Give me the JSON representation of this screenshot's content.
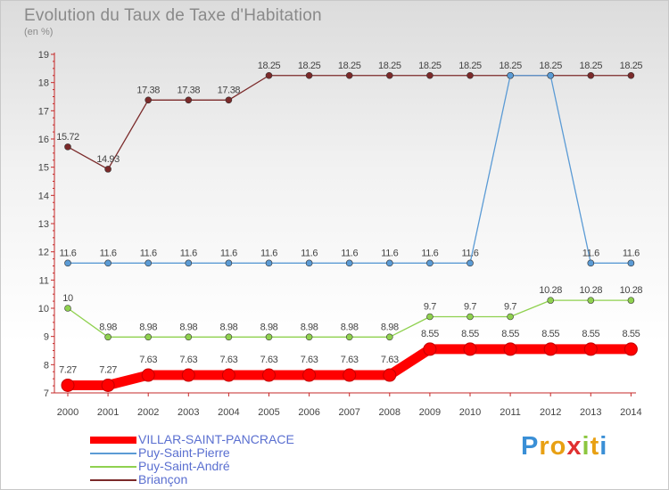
{
  "title": "Evolution du Taux de Taxe d'Habitation",
  "subtitle": "(en %)",
  "brand": {
    "letters": [
      "P",
      "r",
      "o",
      "x",
      "i",
      "t",
      "i"
    ],
    "colors": [
      "#3a8fd6",
      "#e8a013",
      "#e8a013",
      "#e03030",
      "#8cc63f",
      "#e8a013",
      "#3a8fd6"
    ]
  },
  "chart_data": {
    "type": "line",
    "title": "Evolution du Taux de Taxe d'Habitation",
    "ylabel": "(en %)",
    "xlabel": "",
    "ylim": [
      7,
      19
    ],
    "grid": false,
    "categories": [
      "2000",
      "2001",
      "2002",
      "2003",
      "2004",
      "2005",
      "2006",
      "2007",
      "2008",
      "2009",
      "2010",
      "2011",
      "2012",
      "2013",
      "2014"
    ],
    "yticks": [
      7,
      8,
      9,
      10,
      11,
      12,
      13,
      14,
      15,
      16,
      17,
      18,
      19
    ],
    "series": [
      {
        "name": "VILLAR-SAINT-PANCRACE",
        "color": "#ff0000",
        "values": [
          7.27,
          7.27,
          7.63,
          7.63,
          7.63,
          7.63,
          7.63,
          7.63,
          7.63,
          8.55,
          8.55,
          8.55,
          8.55,
          8.55,
          8.55
        ],
        "labels": [
          "7.27",
          "7.27",
          "7.63",
          "7.63",
          "7.63",
          "7.63",
          "7.63",
          "7.63",
          "7.63",
          "8.55",
          "8.55",
          "8.55",
          "8.55",
          "8.55",
          "8.55"
        ]
      },
      {
        "name": "Puy-Saint-Pierre",
        "color": "#5b9bd5",
        "values": [
          11.6,
          11.6,
          11.6,
          11.6,
          11.6,
          11.6,
          11.6,
          11.6,
          11.6,
          11.6,
          11.6,
          18.25,
          18.25,
          11.6,
          11.6
        ],
        "labels": [
          "11.6",
          "11.6",
          "11.6",
          "11.6",
          "11.6",
          "11.6",
          "11.6",
          "11.6",
          "11.6",
          "11.6",
          "11.6",
          "",
          "",
          "11.6",
          "11.6"
        ]
      },
      {
        "name": "Puy-Saint-André",
        "color": "#8fd14f",
        "values": [
          10,
          8.98,
          8.98,
          8.98,
          8.98,
          8.98,
          8.98,
          8.98,
          8.98,
          9.7,
          9.7,
          9.7,
          10.28,
          10.28,
          10.28
        ],
        "labels": [
          "10",
          "8.98",
          "8.98",
          "8.98",
          "8.98",
          "8.98",
          "8.98",
          "8.98",
          "8.98",
          "9.7",
          "9.7",
          "9.7",
          "10.28",
          "10.28",
          "10.28"
        ]
      },
      {
        "name": "Briançon",
        "color": "#7b2a2a",
        "values": [
          15.72,
          14.93,
          17.38,
          17.38,
          17.38,
          18.25,
          18.25,
          18.25,
          18.25,
          18.25,
          18.25,
          18.25,
          18.25,
          18.25,
          18.25
        ],
        "labels": [
          "15.72",
          "14.93",
          "17.38",
          "17.38",
          "17.38",
          "18.25",
          "18.25",
          "18.25",
          "18.25",
          "18.25",
          "18.25",
          "18.25",
          "18.25",
          "18.25",
          "18.25"
        ]
      }
    ]
  }
}
